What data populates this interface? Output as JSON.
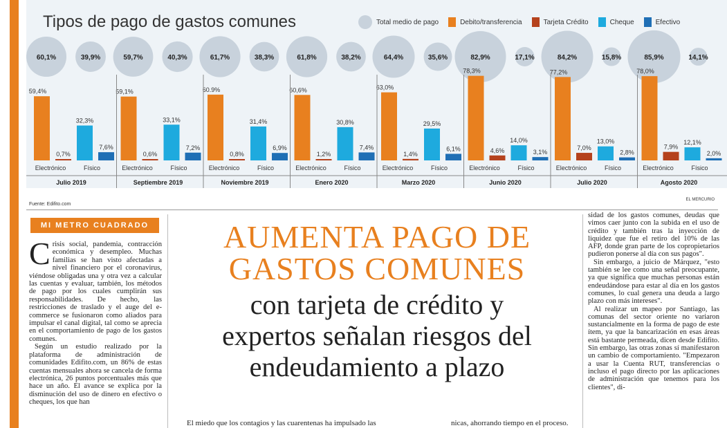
{
  "chart_data": {
    "type": "bar",
    "title": "Tipos de pago de gastos comunes",
    "legend": [
      "Total medio de pago",
      "Debito/transferencia",
      "Tarjeta Crédito",
      "Cheque",
      "Efectivo"
    ],
    "colors": {
      "total": "#c8d2dc",
      "debito": "#e8801f",
      "tarjeta": "#b5421d",
      "cheque": "#1eaade",
      "efectivo": "#1f6fb5"
    },
    "periods": [
      "Julio 2019",
      "Septiembre 2019",
      "Noviembre 2019",
      "Enero 2020",
      "Marzo 2020",
      "Junio 2020",
      "Julio 2020",
      "Agosto 2020"
    ],
    "group_labels": {
      "electronic": "Electrónico",
      "physical": "Físico"
    },
    "total_electronic": [
      60.1,
      59.7,
      61.7,
      61.8,
      64.4,
      82.9,
      84.2,
      85.9
    ],
    "total_electronic_labels": [
      "60,1%",
      "59,7%",
      "61,7%",
      "61,8%",
      "64,4%",
      "82,9%",
      "84,2%",
      "85,9%"
    ],
    "total_physical": [
      39.9,
      40.3,
      38.3,
      38.2,
      35.6,
      17.1,
      15.8,
      14.1
    ],
    "total_physical_labels": [
      "39,9%",
      "40,3%",
      "38,3%",
      "38,2%",
      "35,6%",
      "17,1%",
      "15,8%",
      "14,1%"
    ],
    "series": [
      {
        "name": "Debito/transferencia",
        "values": [
          59.4,
          59.1,
          60.9,
          60.6,
          63.0,
          78.3,
          77.2,
          78.0
        ],
        "labels": [
          "59,4%",
          "59,1%",
          "60.9%",
          "60,6%",
          "63,0%",
          "78,3%",
          "77,2%",
          "78,0%"
        ]
      },
      {
        "name": "Tarjeta Crédito",
        "values": [
          0.7,
          0.6,
          0.8,
          1.2,
          1.4,
          4.6,
          7.0,
          7.9
        ],
        "labels": [
          "0,7%",
          "0,6%",
          "0,8%",
          "1,2%",
          "1,4%",
          "4,6%",
          "7,0%",
          "7,9%"
        ]
      },
      {
        "name": "Cheque",
        "values": [
          32.3,
          33.1,
          31.4,
          30.8,
          29.5,
          14.0,
          13.0,
          12.1
        ],
        "labels": [
          "32,3%",
          "33,1%",
          "31,4%",
          "30,8%",
          "29,5%",
          "14,0%",
          "13,0%",
          "12,1%"
        ]
      },
      {
        "name": "Efectivo",
        "values": [
          7.6,
          7.2,
          6.9,
          7.4,
          6.1,
          3.1,
          2.8,
          2.0
        ],
        "labels": [
          "7,6%",
          "7,2%",
          "6,9%",
          "7,4%",
          "6,1%",
          "3,1%",
          "2,8%",
          "2,0%"
        ]
      }
    ]
  },
  "source": "Fuente: Edifito.com",
  "credit": "EL MERCURIO",
  "section_tag": "MI METRO CUADRADO",
  "headline": {
    "line1": "AUMENTA PAGO DE",
    "line2": "GASTOS COMUNES",
    "line3": "con tarjeta de crédito y",
    "line4": "expertos señalan riesgos del",
    "line5": "endeudamiento a plazo"
  },
  "left_col": {
    "dropcap": "C",
    "p1": "risis social, pandemia, contracción económica y desempleo. Muchas familias se han visto afectadas a nivel financiero por el coronavirus, viéndose obligadas una y otra vez a calcular las cuentas y evaluar, también, los métodos de pago por los cuales cumplirán sus responsabilidades. De hecho, las restricciones de traslado y el auge del e-commerce se fusionaron como aliados para impulsar el canal digital, tal como se aprecia en el comportamiento de pago de los gastos comunes.",
    "p2": "Según un estudio realizado por la plataforma de administración de comunidades Edifito.com, un 86% de estas cuentas mensuales ahora se cancela de forma electrónica, 26 puntos porcentuales más que hace un año. El avance se explica por la disminución del uso de dinero en efectivo o cheques, los que han"
  },
  "bottom": {
    "left": "El miedo que los contagios y las cuarentenas ha impulsado las",
    "right": "nicas, ahorrando tiempo en el proceso."
  },
  "right_col": {
    "p1": "sidad de los gastos comunes, deudas que vimos caer junto con la subida en el uso de crédito y también tras la inyección de liquidez que fue el retiro del 10% de las AFP, donde gran parte de los copropietarios pudieron ponerse al día con sus pagos\".",
    "p2": "Sin embargo, a juicio de Márquez, \"esto también se lee como una señal preocupante, ya que significa que muchas personas están endeudándose para estar al día en los gastos comunes, lo cual genera una deuda a largo plazo con más intereses\".",
    "p3": "Al realizar un mapeo por Santiago, las comunas del sector oriente no variaron sustancialmente en la forma de pago de este ítem, ya que la bancarización en esas áreas está bastante permeada, dicen desde Edifito. Sin embargo, las otras zonas sí manifestaron un cambio de comportamiento. \"Empezaron a usar la Cuenta RUT, transferencias o incluso el pago directo por las aplicaciones de administración que tenemos para los clientes\", di-"
  }
}
